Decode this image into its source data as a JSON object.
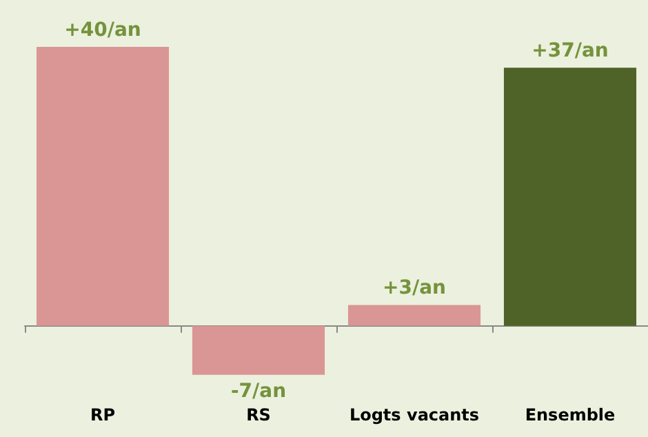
{
  "chart_data": {
    "type": "bar",
    "categories": [
      "RP",
      "RS",
      "Logts vacants",
      "Ensemble"
    ],
    "values": [
      40,
      -7,
      3,
      37
    ],
    "colors": [
      "#d99694",
      "#d99694",
      "#d99694",
      "#4f6228"
    ],
    "value_labels": [
      "+40/an",
      "-7/an",
      "+3/an",
      "+37/an"
    ]
  }
}
